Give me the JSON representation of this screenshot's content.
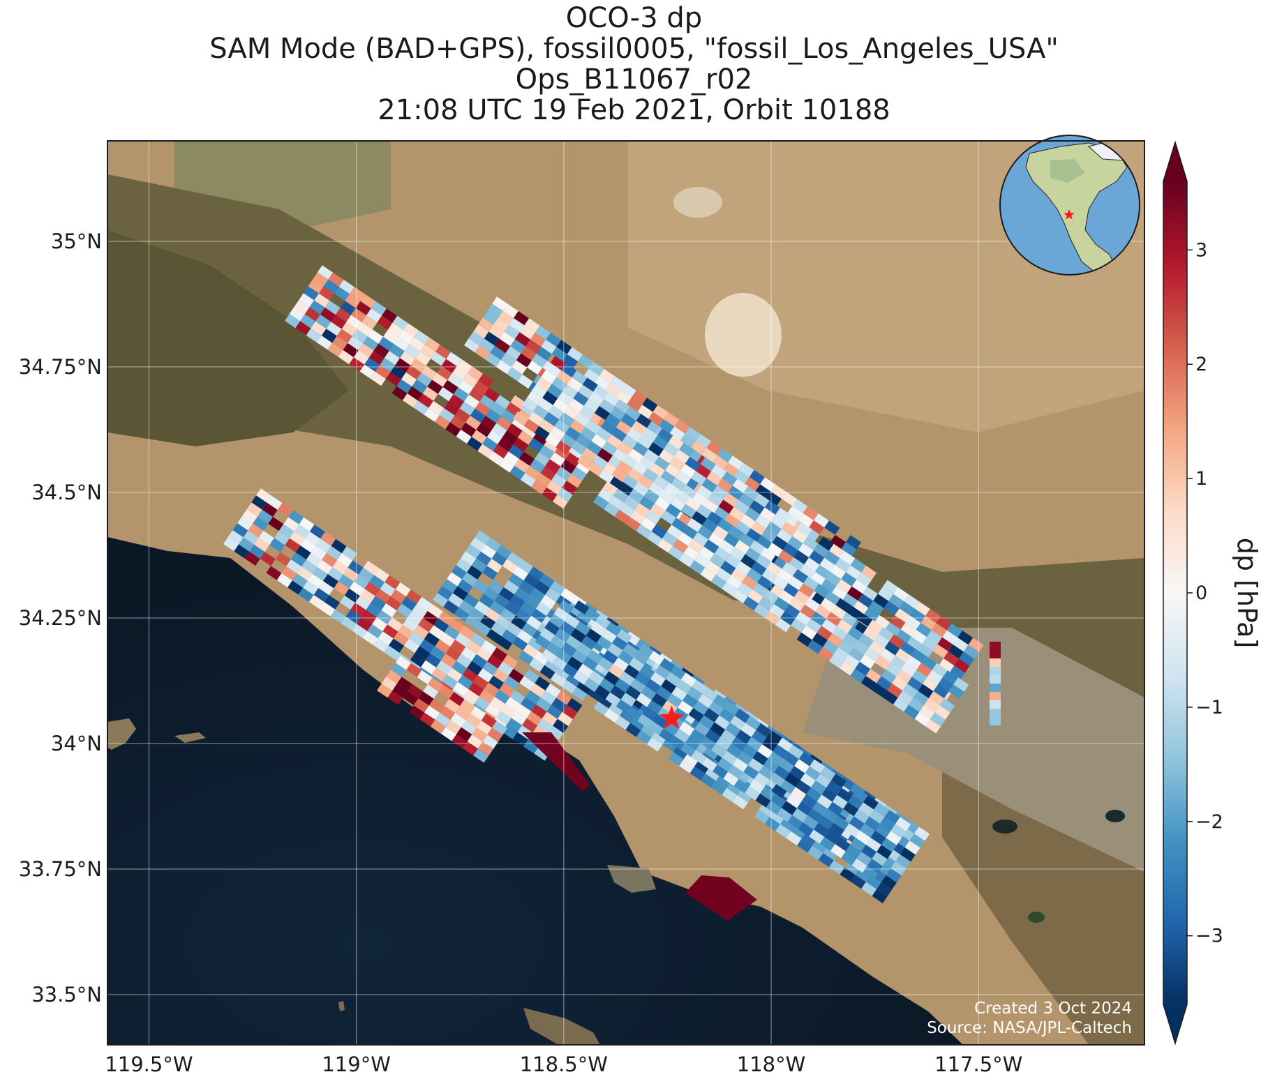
{
  "title": {
    "line1": "OCO-3 dp",
    "line2": "SAM Mode (BAD+GPS), fossil0005, \"fossil_Los_Angeles_USA\"",
    "line3": "Ops_B11067_r02",
    "line4": "21:08 UTC 19 Feb 2021, Orbit 10188"
  },
  "map": {
    "lon_range": [
      -119.6,
      -117.1
    ],
    "lat_range": [
      33.4,
      35.2
    ],
    "x_ticks": [
      {
        "value": -119.5,
        "label": "119.5°W"
      },
      {
        "value": -119.0,
        "label": "119°W"
      },
      {
        "value": -118.5,
        "label": "118.5°W"
      },
      {
        "value": -118.0,
        "label": "118°W"
      },
      {
        "value": -117.5,
        "label": "117.5°W"
      }
    ],
    "y_ticks": [
      {
        "value": 35.0,
        "label": "35°N"
      },
      {
        "value": 34.75,
        "label": "34.75°N"
      },
      {
        "value": 34.5,
        "label": "34.5°N"
      },
      {
        "value": 34.25,
        "label": "34.25°N"
      },
      {
        "value": 34.0,
        "label": "34°N"
      },
      {
        "value": 33.75,
        "label": "33.75°N"
      },
      {
        "value": 33.5,
        "label": "33.5°N"
      }
    ],
    "gridlines": true,
    "target_marker": {
      "lon": -118.24,
      "lat": 34.05,
      "color": "#ff1a1a",
      "icon": "star-icon"
    },
    "inset_globe": {
      "placement": "top-right",
      "marker_icon": "star-icon",
      "marker_color": "#ff1a1a"
    },
    "colors": {
      "ocean": "#0d1b2a",
      "land_desert": "#b08d62",
      "mountains": "#5d5535"
    }
  },
  "colorbar": {
    "label": "dp [hPa]",
    "vmin": -3.6,
    "vmax": 3.6,
    "extend": "both",
    "ticks": [
      {
        "value": 3,
        "label": "3"
      },
      {
        "value": 2,
        "label": "2"
      },
      {
        "value": 1,
        "label": "1"
      },
      {
        "value": 0,
        "label": "0"
      },
      {
        "value": -1,
        "label": "−1"
      },
      {
        "value": -2,
        "label": "−2"
      },
      {
        "value": -3,
        "label": "−3"
      }
    ],
    "colormap": "RdBu_r",
    "stops": [
      "#053061",
      "#2166ac",
      "#4393c3",
      "#92c5de",
      "#d1e5f0",
      "#f7f7f7",
      "#fddbc7",
      "#f4a582",
      "#d6604d",
      "#b2182b",
      "#67001f"
    ]
  },
  "credits": {
    "created": "Created 3 Oct 2024",
    "source": "Source: NASA/JPL-Caltech"
  }
}
